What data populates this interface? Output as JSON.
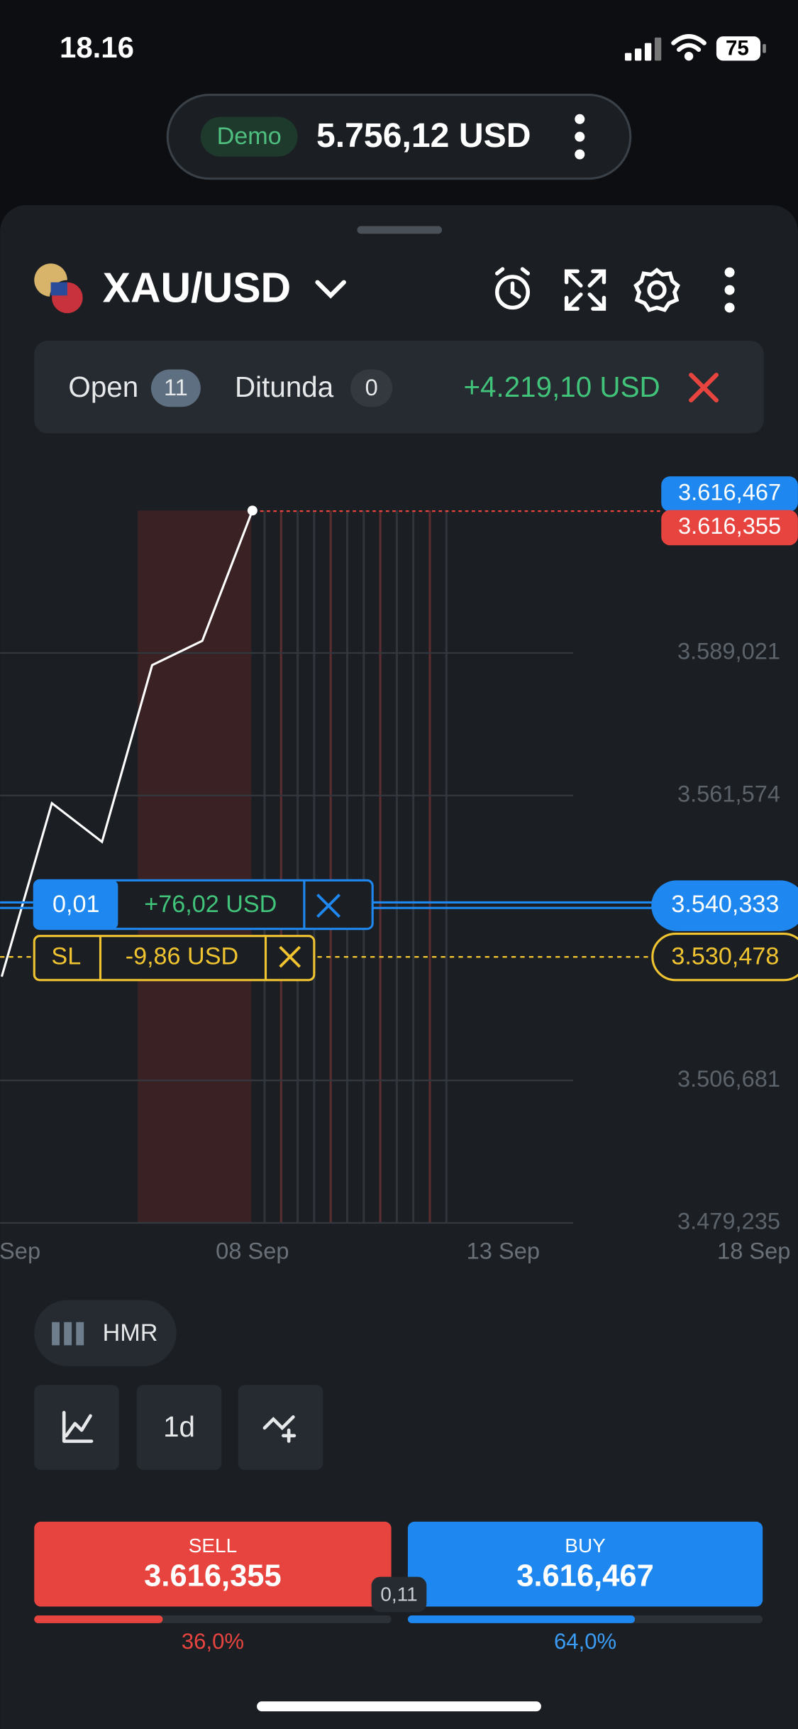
{
  "status_bar": {
    "time": "18.16",
    "battery": "75"
  },
  "account": {
    "badge": "Demo",
    "balance": "5.756,12 USD"
  },
  "symbol": "XAU/USD",
  "positions": {
    "open_label": "Open",
    "open_count": "11",
    "pending_label": "Ditunda",
    "pending_count": "0",
    "pnl": "+4.219,10 USD"
  },
  "chart_data": {
    "type": "line",
    "x": [
      3,
      4,
      5,
      6,
      7,
      8
    ],
    "xlim": [
      3,
      18
    ],
    "xticks": [
      {
        "value": 3,
        "label": "Sep"
      },
      {
        "value": 8,
        "label": "08 Sep"
      },
      {
        "value": 13,
        "label": "13 Sep"
      },
      {
        "value": 18,
        "label": "18 Sep"
      }
    ],
    "series": [
      {
        "name": "XAU/USD",
        "color": "#ffffff",
        "values": [
          3526.68,
          3560.09,
          3552.64,
          3586.68,
          3591.36,
          3616.467
        ]
      }
    ],
    "ylim": [
      3479.235,
      3616.467
    ],
    "yticks": [
      {
        "value": 3479.235,
        "label": "3.479,235"
      },
      {
        "value": 3506.681,
        "label": "3.506,681"
      },
      {
        "value": 3561.574,
        "label": "3.561,574"
      },
      {
        "value": 3589.021,
        "label": "3.589,021"
      }
    ],
    "grid": true,
    "ask": {
      "value": 3616.467,
      "label": "3.616,467"
    },
    "bid": {
      "value": 3616.355,
      "label": "3.616,355"
    },
    "position": {
      "value": 3540.333,
      "label": "3.540,333",
      "volume": "0,01",
      "pnl": "+76,02 USD"
    },
    "stop_loss": {
      "value": 3530.478,
      "label": "3.530,478",
      "tag": "SL",
      "pnl": "-9,86 USD"
    }
  },
  "toolbar": {
    "indicator": "HMR",
    "timeframe": "1d"
  },
  "trade": {
    "sell_label": "SELL",
    "sell_price": "3.616,355",
    "buy_label": "BUY",
    "buy_price": "3.616,467",
    "spread": "0,11",
    "sell_share": {
      "value": 36,
      "label": "36,0%"
    },
    "buy_share": {
      "value": 64,
      "label": "64,0%"
    }
  }
}
